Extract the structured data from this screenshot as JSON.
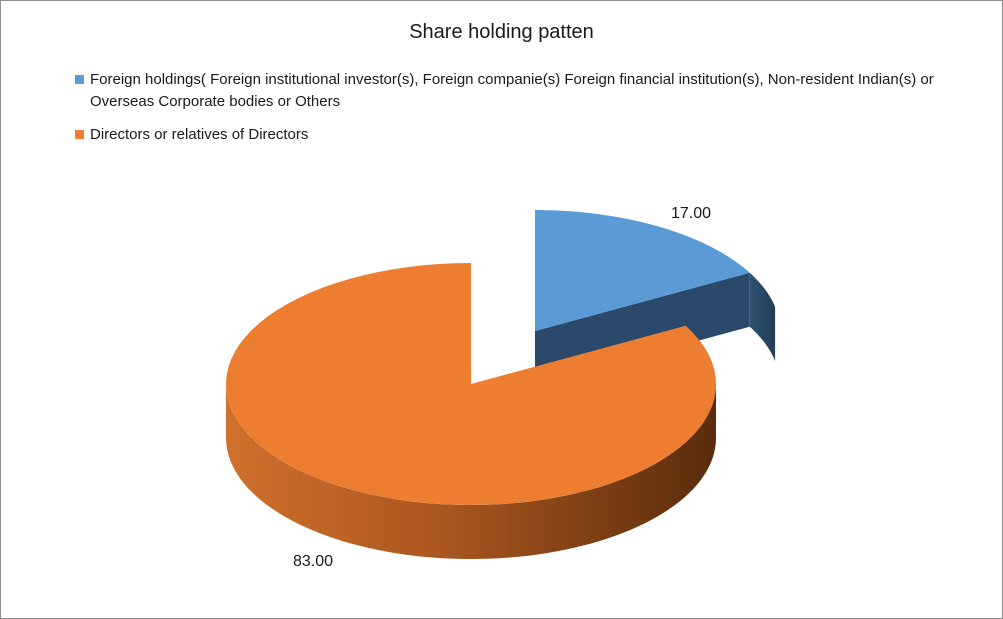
{
  "chart_data": {
    "type": "pie",
    "title": "Share holding patten",
    "legend_position": "top",
    "series": [
      {
        "name": "Foreign holdings( Foreign institutional investor(s), Foreign companie(s) Foreign financial institution(s),  Non-resident Indian(s) or Overseas Corporate bodies or Others",
        "value": 17,
        "label": "17.00",
        "color": "#5b9bd5",
        "side_color": "#2b4a6b",
        "exploded": true
      },
      {
        "name": "Directors or relatives of Directors",
        "value": 83,
        "label": "83.00",
        "color": "#ed7d31",
        "side_color": "#7a3a10",
        "exploded": false
      }
    ]
  }
}
